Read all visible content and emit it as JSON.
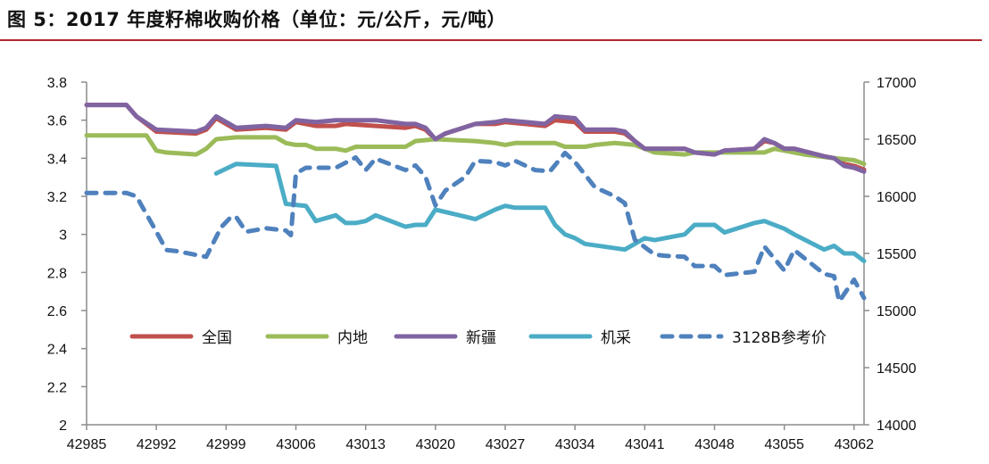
{
  "title": "图 5：2017 年度籽棉收购价格（单位：元/公斤，元/吨）",
  "chart_data": {
    "type": "line",
    "title": "图 5：2017 年度籽棉收购价格（单位：元/公斤，元/吨）",
    "x_ticks": [
      42985,
      42992,
      42999,
      43006,
      43013,
      43020,
      43027,
      43034,
      43041,
      43048,
      43055,
      43062
    ],
    "xlim": [
      42985,
      43063
    ],
    "ylim_left": [
      2,
      3.8
    ],
    "y_ticks_left": [
      "2",
      "2.2",
      "2.4",
      "2.6",
      "2.8",
      "3",
      "3.2",
      "3.4",
      "3.6",
      "3.8"
    ],
    "ylim_right": [
      14000,
      17000
    ],
    "y_ticks_right": [
      "14000",
      "14500",
      "15000",
      "15500",
      "16000",
      "16500",
      "17000"
    ],
    "grid": false,
    "legend_position": "bottom-center inside",
    "series": [
      {
        "name": "全国",
        "axis": "left",
        "color": "#c0504d",
        "dash": false,
        "points": [
          [
            42985,
            3.68
          ],
          [
            42989,
            3.68
          ],
          [
            42990,
            3.62
          ],
          [
            42992,
            3.54
          ],
          [
            42996,
            3.53
          ],
          [
            42997,
            3.55
          ],
          [
            42998,
            3.61
          ],
          [
            43000,
            3.55
          ],
          [
            43003,
            3.56
          ],
          [
            43005,
            3.55
          ],
          [
            43006,
            3.59
          ],
          [
            43008,
            3.57
          ],
          [
            43010,
            3.57
          ],
          [
            43011,
            3.58
          ],
          [
            43014,
            3.57
          ],
          [
            43017,
            3.56
          ],
          [
            43018,
            3.57
          ],
          [
            43019,
            3.55
          ],
          [
            43020,
            3.5
          ],
          [
            43021,
            3.53
          ],
          [
            43024,
            3.58
          ],
          [
            43026,
            3.58
          ],
          [
            43027,
            3.59
          ],
          [
            43029,
            3.58
          ],
          [
            43031,
            3.57
          ],
          [
            43032,
            3.6
          ],
          [
            43034,
            3.59
          ],
          [
            43035,
            3.54
          ],
          [
            43038,
            3.54
          ],
          [
            43039,
            3.53
          ],
          [
            43040,
            3.49
          ],
          [
            43041,
            3.45
          ],
          [
            43045,
            3.45
          ],
          [
            43046,
            3.43
          ],
          [
            43048,
            3.42
          ],
          [
            43049,
            3.44
          ],
          [
            43052,
            3.45
          ],
          [
            43053,
            3.49
          ],
          [
            43054,
            3.48
          ],
          [
            43055,
            3.45
          ],
          [
            43056,
            3.45
          ],
          [
            43059,
            3.41
          ],
          [
            43060,
            3.4
          ],
          [
            43061,
            3.37
          ],
          [
            43062,
            3.36
          ],
          [
            43063,
            3.34
          ]
        ]
      },
      {
        "name": "内地",
        "axis": "left",
        "color": "#9bbb59",
        "dash": false,
        "points": [
          [
            42985,
            3.52
          ],
          [
            42991,
            3.52
          ],
          [
            42992,
            3.44
          ],
          [
            42993,
            3.43
          ],
          [
            42996,
            3.42
          ],
          [
            42997,
            3.45
          ],
          [
            42998,
            3.5
          ],
          [
            43000,
            3.51
          ],
          [
            43004,
            3.51
          ],
          [
            43005,
            3.48
          ],
          [
            43006,
            3.47
          ],
          [
            43007,
            3.47
          ],
          [
            43008,
            3.45
          ],
          [
            43010,
            3.45
          ],
          [
            43011,
            3.44
          ],
          [
            43012,
            3.46
          ],
          [
            43017,
            3.46
          ],
          [
            43018,
            3.49
          ],
          [
            43020,
            3.5
          ],
          [
            43024,
            3.49
          ],
          [
            43026,
            3.48
          ],
          [
            43027,
            3.47
          ],
          [
            43028,
            3.48
          ],
          [
            43032,
            3.48
          ],
          [
            43033,
            3.46
          ],
          [
            43035,
            3.46
          ],
          [
            43036,
            3.47
          ],
          [
            43038,
            3.48
          ],
          [
            43040,
            3.47
          ],
          [
            43042,
            3.43
          ],
          [
            43045,
            3.42
          ],
          [
            43046,
            3.43
          ],
          [
            43053,
            3.43
          ],
          [
            43054,
            3.45
          ],
          [
            43057,
            3.42
          ],
          [
            43060,
            3.4
          ],
          [
            43062,
            3.39
          ],
          [
            43063,
            3.37
          ]
        ]
      },
      {
        "name": "新疆",
        "axis": "left",
        "color": "#8064a2",
        "dash": false,
        "points": [
          [
            42985,
            3.68
          ],
          [
            42989,
            3.68
          ],
          [
            42990,
            3.62
          ],
          [
            42992,
            3.55
          ],
          [
            42996,
            3.54
          ],
          [
            42997,
            3.56
          ],
          [
            42998,
            3.62
          ],
          [
            43000,
            3.56
          ],
          [
            43003,
            3.57
          ],
          [
            43005,
            3.56
          ],
          [
            43006,
            3.6
          ],
          [
            43008,
            3.59
          ],
          [
            43010,
            3.6
          ],
          [
            43014,
            3.6
          ],
          [
            43017,
            3.58
          ],
          [
            43018,
            3.58
          ],
          [
            43019,
            3.56
          ],
          [
            43020,
            3.5
          ],
          [
            43021,
            3.53
          ],
          [
            43024,
            3.58
          ],
          [
            43026,
            3.59
          ],
          [
            43027,
            3.6
          ],
          [
            43029,
            3.59
          ],
          [
            43031,
            3.58
          ],
          [
            43032,
            3.62
          ],
          [
            43034,
            3.61
          ],
          [
            43035,
            3.55
          ],
          [
            43038,
            3.55
          ],
          [
            43039,
            3.54
          ],
          [
            43040,
            3.49
          ],
          [
            43041,
            3.45
          ],
          [
            43045,
            3.45
          ],
          [
            43046,
            3.43
          ],
          [
            43048,
            3.42
          ],
          [
            43049,
            3.44
          ],
          [
            43052,
            3.45
          ],
          [
            43053,
            3.5
          ],
          [
            43054,
            3.48
          ],
          [
            43055,
            3.45
          ],
          [
            43056,
            3.45
          ],
          [
            43059,
            3.41
          ],
          [
            43060,
            3.4
          ],
          [
            43061,
            3.36
          ],
          [
            43062,
            3.35
          ],
          [
            43063,
            3.33
          ]
        ]
      },
      {
        "name": "机采",
        "axis": "left",
        "color": "#4bacc6",
        "dash": false,
        "points": [
          [
            42998,
            3.32
          ],
          [
            43000,
            3.37
          ],
          [
            43004,
            3.36
          ],
          [
            43005,
            3.16
          ],
          [
            43007,
            3.15
          ],
          [
            43008,
            3.07
          ],
          [
            43010,
            3.1
          ],
          [
            43011,
            3.06
          ],
          [
            43012,
            3.06
          ],
          [
            43013,
            3.07
          ],
          [
            43014,
            3.1
          ],
          [
            43017,
            3.04
          ],
          [
            43018,
            3.05
          ],
          [
            43019,
            3.05
          ],
          [
            43020,
            3.13
          ],
          [
            43024,
            3.08
          ],
          [
            43026,
            3.13
          ],
          [
            43027,
            3.15
          ],
          [
            43028,
            3.14
          ],
          [
            43031,
            3.14
          ],
          [
            43032,
            3.05
          ],
          [
            43033,
            3.0
          ],
          [
            43034,
            2.98
          ],
          [
            43035,
            2.95
          ],
          [
            43039,
            2.92
          ],
          [
            43041,
            2.98
          ],
          [
            43042,
            2.97
          ],
          [
            43045,
            3.0
          ],
          [
            43046,
            3.05
          ],
          [
            43048,
            3.05
          ],
          [
            43049,
            3.01
          ],
          [
            43052,
            3.06
          ],
          [
            43053,
            3.07
          ],
          [
            43055,
            3.03
          ],
          [
            43056,
            3.0
          ],
          [
            43059,
            2.92
          ],
          [
            43060,
            2.94
          ],
          [
            43061,
            2.9
          ],
          [
            43062,
            2.9
          ],
          [
            43063,
            2.86
          ]
        ]
      },
      {
        "name": "3128B参考价",
        "axis": "right",
        "color": "#4f81bd",
        "dash": true,
        "points": [
          [
            42985,
            16030
          ],
          [
            42989,
            16030
          ],
          [
            42990,
            16000
          ],
          [
            42992,
            15690
          ],
          [
            42993,
            15530
          ],
          [
            42994,
            15520
          ],
          [
            42997,
            15470
          ],
          [
            42998.5,
            15730
          ],
          [
            42999.5,
            15820
          ],
          [
            43000,
            15820
          ],
          [
            43001,
            15690
          ],
          [
            43003,
            15720
          ],
          [
            43005,
            15700
          ],
          [
            43005.5,
            15660
          ],
          [
            43006,
            16200
          ],
          [
            43007,
            16250
          ],
          [
            43010,
            16250
          ],
          [
            43012,
            16340
          ],
          [
            43013,
            16230
          ],
          [
            43014,
            16330
          ],
          [
            43017,
            16230
          ],
          [
            43018,
            16270
          ],
          [
            43019,
            16170
          ],
          [
            43020,
            15920
          ],
          [
            43021,
            16050
          ],
          [
            43023,
            16170
          ],
          [
            43024,
            16310
          ],
          [
            43026,
            16300
          ],
          [
            43027,
            16270
          ],
          [
            43028,
            16310
          ],
          [
            43030,
            16230
          ],
          [
            43031.5,
            16220
          ],
          [
            43033,
            16380
          ],
          [
            43034,
            16300
          ],
          [
            43036,
            16080
          ],
          [
            43037,
            16040
          ],
          [
            43038,
            16000
          ],
          [
            43039,
            15940
          ],
          [
            43040,
            15620
          ],
          [
            43042,
            15490
          ],
          [
            43043,
            15480
          ],
          [
            43045,
            15470
          ],
          [
            43046,
            15390
          ],
          [
            43048,
            15390
          ],
          [
            43049,
            15310
          ],
          [
            43052,
            15340
          ],
          [
            43053,
            15560
          ],
          [
            43055,
            15350
          ],
          [
            43056,
            15530
          ],
          [
            43059,
            15320
          ],
          [
            43060,
            15300
          ],
          [
            43060.5,
            15080
          ],
          [
            43062,
            15270
          ],
          [
            43063,
            15110
          ]
        ]
      }
    ]
  }
}
